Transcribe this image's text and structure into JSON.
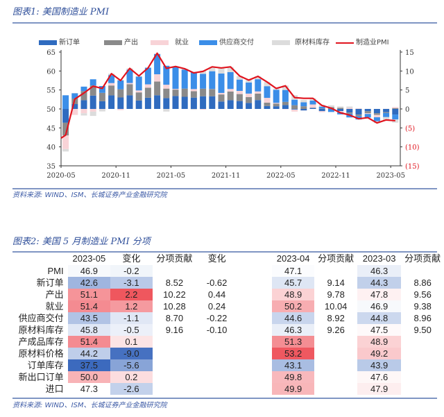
{
  "chart1": {
    "title": "图表1:  美国制造业 PMI",
    "source": "资料来源: WIND、ISM、长城证券产业金融研究院"
  },
  "chart_data": {
    "type": "bar",
    "title": "美国制造业 PMI",
    "legend": [
      "新订单",
      "产出",
      "就业",
      "供应商交付",
      "原材料库存",
      "制造业PMI"
    ],
    "legend_position": "top",
    "colors": {
      "新订单": "#2f6bbf",
      "产出": "#8a8a8a",
      "就业": "#f8d3d7",
      "供应商交付": "#3b8ee8",
      "原材料库存": "#dcdcdc",
      "制造业PMI": "#e0141e"
    },
    "x_ticks": [
      "2020-05",
      "2020-11",
      "2021-05",
      "2021-11",
      "2022-05",
      "2022-11",
      "2023-05"
    ],
    "y_left": {
      "range": [
        35,
        65
      ],
      "ticks": [
        "35",
        "40",
        "45",
        "50",
        "55",
        "60",
        "65"
      ]
    },
    "y_right": {
      "range": [
        -15,
        15
      ],
      "ticks": [
        "(15)",
        "(10)",
        "(5)",
        "0",
        "5",
        "10",
        "15"
      ]
    },
    "months": [
      "2020-05",
      "2020-06",
      "2020-07",
      "2020-08",
      "2020-09",
      "2020-10",
      "2020-11",
      "2020-12",
      "2021-01",
      "2021-02",
      "2021-03",
      "2021-04",
      "2021-05",
      "2021-06",
      "2021-07",
      "2021-08",
      "2021-09",
      "2021-10",
      "2021-11",
      "2021-12",
      "2022-01",
      "2022-02",
      "2022-03",
      "2022-04",
      "2022-05",
      "2022-06",
      "2022-07",
      "2022-08",
      "2022-09",
      "2022-10",
      "2022-11",
      "2022-12",
      "2023-01",
      "2023-02",
      "2023-03",
      "2023-04",
      "2023-05"
    ],
    "pmi": [
      43.1,
      52.6,
      54.2,
      56.0,
      55.4,
      59.3,
      57.5,
      60.7,
      58.7,
      60.8,
      64.7,
      60.7,
      61.2,
      60.6,
      59.5,
      59.9,
      61.1,
      60.8,
      61.1,
      58.7,
      57.6,
      58.6,
      57.1,
      55.4,
      56.1,
      53.0,
      52.8,
      52.8,
      50.9,
      50.2,
      49.0,
      48.4,
      47.4,
      47.7,
      46.3,
      47.1,
      46.9
    ],
    "sub_indices_note": "contribution = (index-50)*0.2 on right axis",
    "new_orders": [
      31.8,
      56.4,
      61.5,
      67.6,
      60.2,
      67.9,
      65.1,
      67.9,
      61.1,
      64.8,
      68.0,
      64.3,
      67.0,
      66.0,
      64.9,
      66.7,
      66.7,
      59.8,
      61.5,
      60.4,
      57.9,
      61.7,
      53.8,
      53.5,
      55.1,
      49.2,
      48.0,
      51.3,
      47.1,
      49.2,
      47.2,
      45.2,
      42.5,
      47.0,
      44.3,
      45.7,
      42.6
    ],
    "production": [
      33.2,
      57.3,
      62.1,
      63.3,
      61.0,
      63.0,
      60.8,
      64.8,
      60.7,
      63.2,
      68.1,
      62.5,
      58.5,
      60.8,
      58.4,
      60.0,
      59.4,
      59.3,
      61.5,
      59.2,
      57.8,
      58.5,
      54.5,
      53.6,
      54.2,
      54.9,
      53.5,
      50.4,
      50.6,
      52.3,
      51.5,
      48.5,
      48.0,
      47.3,
      47.8,
      48.9,
      51.1
    ],
    "employment": [
      32.1,
      42.1,
      44.3,
      46.4,
      49.6,
      53.2,
      48.4,
      51.5,
      52.6,
      54.4,
      59.6,
      55.1,
      50.9,
      49.9,
      52.9,
      49.0,
      50.2,
      52.0,
      53.3,
      54.2,
      54.5,
      52.9,
      56.3,
      50.9,
      49.6,
      47.3,
      49.9,
      54.2,
      48.7,
      50.0,
      48.4,
      51.4,
      50.6,
      49.1,
      46.9,
      50.2,
      51.4
    ],
    "supplier_deliveries": [
      68.0,
      56.9,
      55.8,
      58.2,
      59.0,
      60.5,
      61.7,
      67.7,
      68.2,
      72.0,
      76.6,
      75.0,
      78.8,
      75.1,
      72.5,
      69.5,
      73.4,
      75.6,
      72.2,
      64.9,
      64.6,
      66.1,
      65.4,
      67.2,
      65.7,
      57.3,
      55.2,
      55.1,
      52.4,
      46.8,
      47.2,
      45.1,
      45.6,
      45.2,
      44.8,
      44.6,
      43.5
    ],
    "inventories": [
      46.8,
      50.4,
      47.0,
      44.4,
      47.1,
      51.9,
      51.2,
      51.6,
      50.8,
      49.7,
      50.8,
      46.5,
      50.8,
      51.1,
      48.9,
      54.2,
      55.6,
      57.0,
      56.8,
      54.6,
      53.2,
      53.8,
      55.5,
      51.6,
      55.9,
      56.0,
      53.2,
      53.1,
      52.6,
      52.5,
      51.8,
      51.8,
      50.2,
      50.1,
      47.5,
      46.3,
      45.8
    ]
  },
  "table": {
    "title": "图表2:  美国 5 月制造业 PMI 分项",
    "source": "资料来源: WIND、ISM、长城证券产业金融研究院",
    "headers": [
      "",
      "2023-05",
      "变化",
      "分项贡献",
      "变化",
      "",
      "2023-04",
      "分项贡献",
      "2023-03",
      "分项贡献"
    ],
    "rows": [
      {
        "label": "PMI",
        "may": "46.9",
        "chg": "-0.2",
        "contrib": "",
        "cchg": "",
        "apr": "47.1",
        "apr_c": "",
        "mar": "46.3",
        "mar_c": ""
      },
      {
        "label": "新订单",
        "may": "42.6",
        "chg": "-3.1",
        "contrib": "8.52",
        "cchg": "-0.62",
        "apr": "45.7",
        "apr_c": "9.14",
        "mar": "44.3",
        "mar_c": "8.86"
      },
      {
        "label": "产出",
        "may": "51.1",
        "chg": "2.2",
        "contrib": "10.22",
        "cchg": "0.44",
        "apr": "48.9",
        "apr_c": "9.78",
        "mar": "47.8",
        "mar_c": "9.56"
      },
      {
        "label": "就业",
        "may": "51.4",
        "chg": "1.2",
        "contrib": "10.28",
        "cchg": "0.24",
        "apr": "50.2",
        "apr_c": "10.04",
        "mar": "46.9",
        "mar_c": "9.38"
      },
      {
        "label": "供应商交付",
        "may": "43.5",
        "chg": "-1.1",
        "contrib": "8.70",
        "cchg": "-0.22",
        "apr": "44.6",
        "apr_c": "8.92",
        "mar": "44.8",
        "mar_c": "8.96"
      },
      {
        "label": "原材料库存",
        "may": "45.8",
        "chg": "-0.5",
        "contrib": "9.16",
        "cchg": "-0.10",
        "apr": "46.3",
        "apr_c": "9.26",
        "mar": "47.5",
        "mar_c": "9.50"
      },
      {
        "label": "产成品库存",
        "may": "51.4",
        "chg": "0.1",
        "contrib": "",
        "cchg": "",
        "apr": "51.3",
        "apr_c": "",
        "mar": "48.9",
        "mar_c": ""
      },
      {
        "label": "原材料价格",
        "may": "44.2",
        "chg": "-9.0",
        "contrib": "",
        "cchg": "",
        "apr": "53.2",
        "apr_c": "",
        "mar": "49.2",
        "mar_c": ""
      },
      {
        "label": "订单库存",
        "may": "37.5",
        "chg": "-5.6",
        "contrib": "",
        "cchg": "",
        "apr": "43.1",
        "apr_c": "",
        "mar": "43.9",
        "mar_c": ""
      },
      {
        "label": "新出口订单",
        "may": "50.0",
        "chg": "0.2",
        "contrib": "",
        "cchg": "",
        "apr": "49.8",
        "apr_c": "",
        "mar": "47.6",
        "mar_c": ""
      },
      {
        "label": "进口",
        "may": "47.3",
        "chg": "-2.6",
        "contrib": "",
        "cchg": "",
        "apr": "49.9",
        "apr_c": "",
        "mar": "47.9",
        "mar_c": ""
      }
    ]
  }
}
